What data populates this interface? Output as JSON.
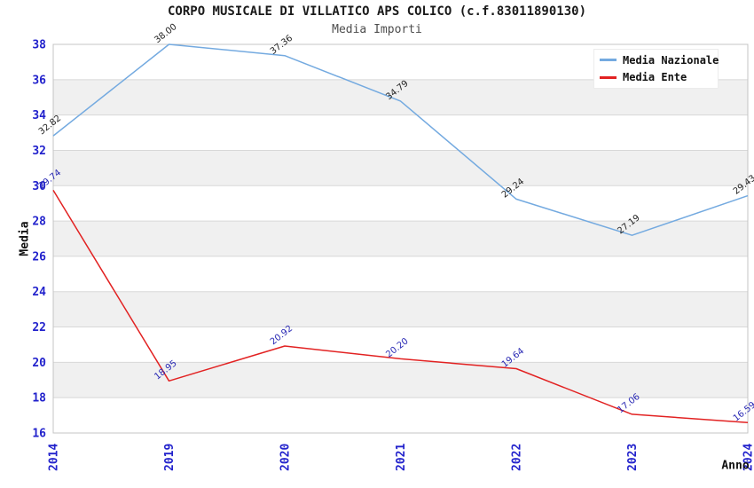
{
  "title": "CORPO MUSICALE DI VILLATICO APS COLICO (c.f.83011890130)",
  "subtitle": "Media Importi",
  "legend": {
    "items": [
      {
        "label": "Media Nazionale",
        "color": "#74aae0"
      },
      {
        "label": "Media Ente",
        "color": "#e22222"
      }
    ]
  },
  "chart_data": {
    "type": "line",
    "title": "CORPO MUSICALE DI VILLATICO APS COLICO (c.f.83011890130)",
    "subtitle": "Media Importi",
    "xlabel": "Anno",
    "ylabel": "Media",
    "categories": [
      "2014",
      "2019",
      "2020",
      "2021",
      "2022",
      "2023",
      "2024"
    ],
    "series": [
      {
        "name": "Media Nazionale",
        "color": "#74aae0",
        "label_color": "#1f1f1f",
        "values": [
          32.82,
          38.0,
          37.36,
          34.79,
          29.24,
          27.19,
          29.43
        ]
      },
      {
        "name": "Media Ente",
        "color": "#e22222",
        "label_color": "#2828b4",
        "values": [
          29.74,
          18.95,
          20.92,
          20.2,
          19.64,
          17.06,
          16.59
        ]
      }
    ],
    "ylim": [
      16,
      38
    ],
    "ytick_step": 2,
    "grid": true,
    "legend_position": "top-right",
    "band_colors": [
      "#ffffff",
      "#f0f0f0"
    ],
    "grid_color": "#d8d8d8",
    "border_color": "#c4c4c4",
    "axis_tick_color": "#2222cc",
    "label_decimals": 2
  }
}
